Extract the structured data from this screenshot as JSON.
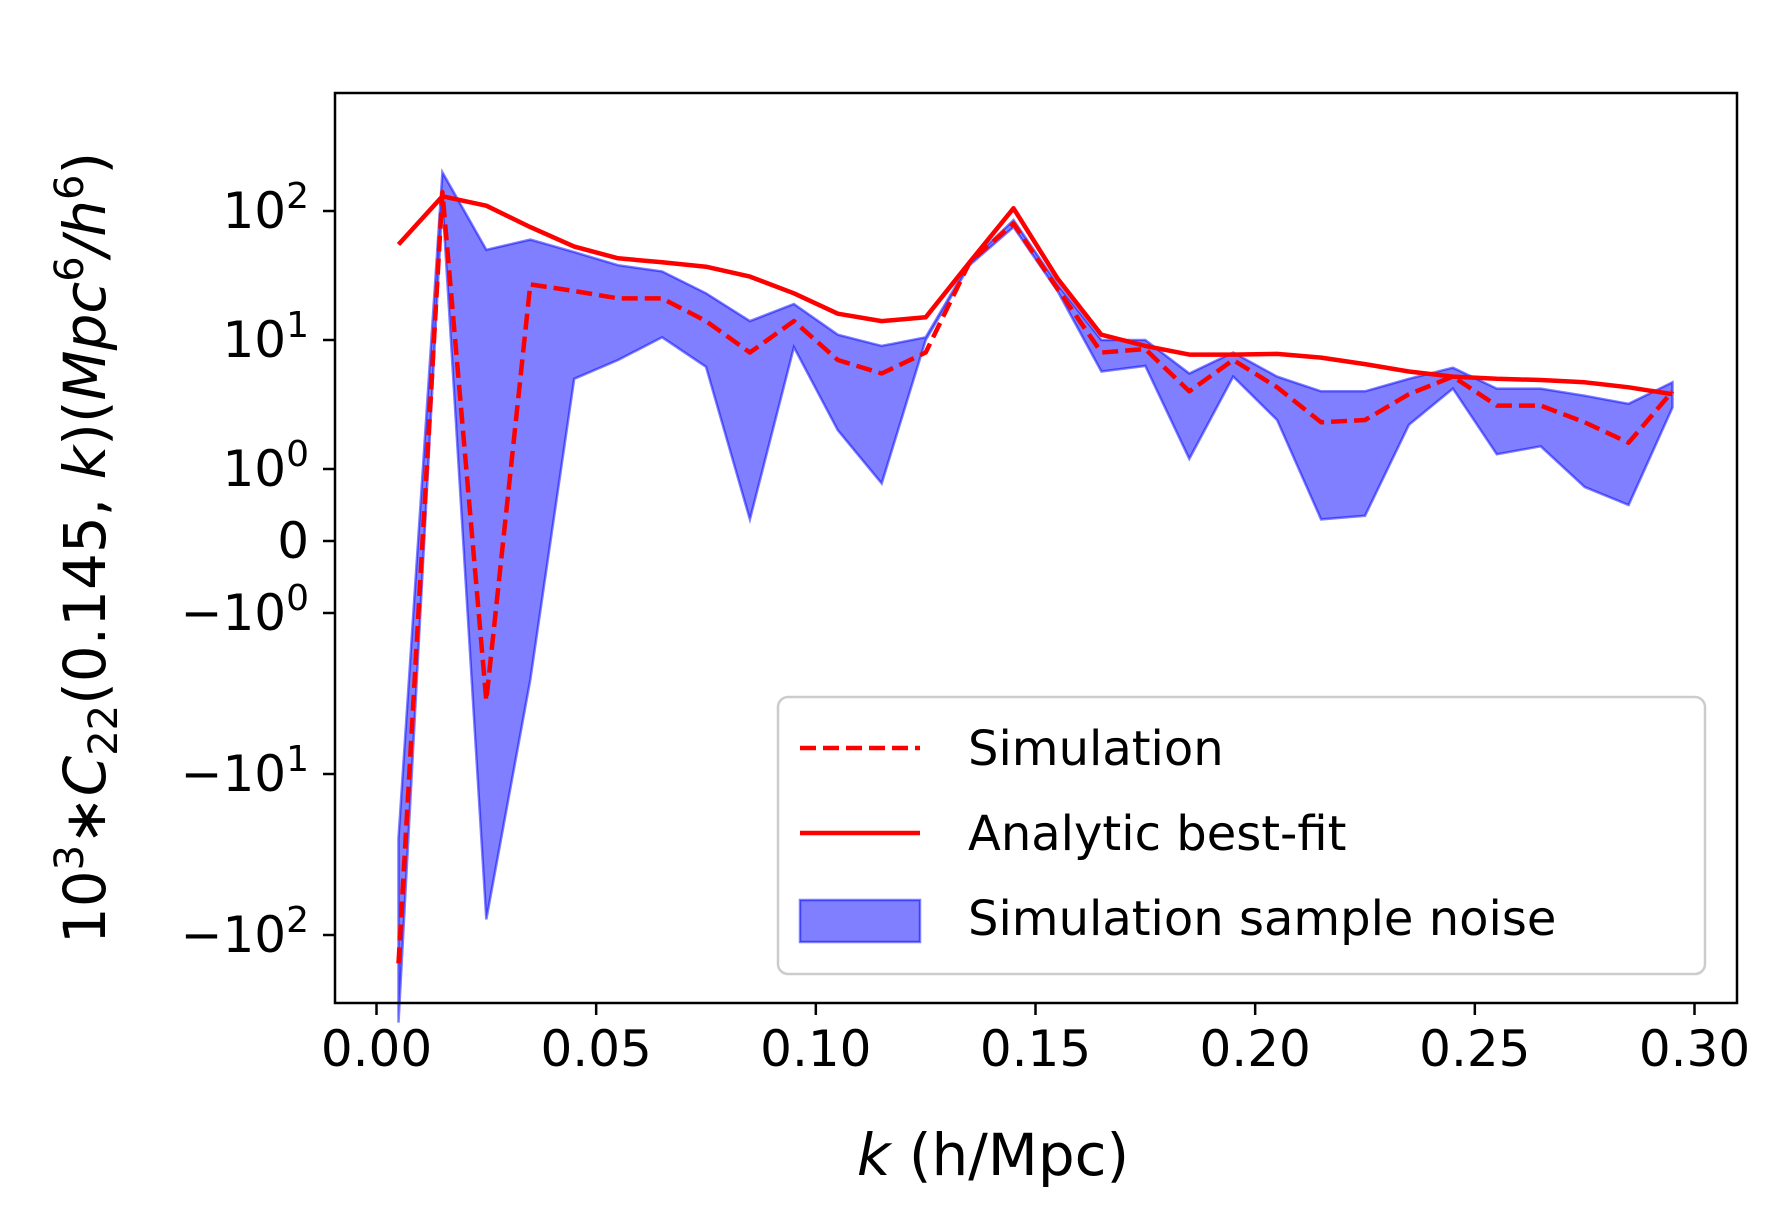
{
  "chart_data": {
    "type": "line",
    "title": "",
    "xlabel_italic": "k",
    "xlabel_rest": " (h/Mpc)",
    "ylabel": {
      "prefix": "10",
      "prefix_sup": "3",
      "star": "∗",
      "C": "C",
      "C_sub": "22",
      "args": "(0.145, ",
      "k": "k",
      "close": ")(",
      "M": "M",
      "pc": "pc",
      "pc_sup": "6",
      "slash": "/",
      "h": "h",
      "h_sup": "6",
      "end": ")"
    },
    "yscale": "symlog",
    "linthresh": 1,
    "xlim": [
      -0.0095,
      0.3095
    ],
    "ylim": [
      -480,
      480
    ],
    "x_ticks": [
      {
        "value": 0.0,
        "label": "0.00"
      },
      {
        "value": 0.05,
        "label": "0.05"
      },
      {
        "value": 0.1,
        "label": "0.10"
      },
      {
        "value": 0.15,
        "label": "0.15"
      },
      {
        "value": 0.2,
        "label": "0.20"
      },
      {
        "value": 0.25,
        "label": "0.25"
      },
      {
        "value": 0.3,
        "label": "0.30"
      }
    ],
    "y_ticks": [
      {
        "value": 100,
        "base": "10",
        "exp": "2",
        "sign": ""
      },
      {
        "value": 10,
        "base": "10",
        "exp": "1",
        "sign": ""
      },
      {
        "value": 1,
        "base": "10",
        "exp": "0",
        "sign": ""
      },
      {
        "value": 0,
        "base": "0",
        "exp": "",
        "sign": ""
      },
      {
        "value": -1,
        "base": "10",
        "exp": "0",
        "sign": "−"
      },
      {
        "value": -10,
        "base": "10",
        "exp": "1",
        "sign": "−"
      },
      {
        "value": -100,
        "base": "10",
        "exp": "2",
        "sign": "−"
      }
    ],
    "x": [
      0.005,
      0.015,
      0.025,
      0.035,
      0.045,
      0.055,
      0.065,
      0.075,
      0.085,
      0.095,
      0.105,
      0.115,
      0.125,
      0.135,
      0.145,
      0.155,
      0.165,
      0.175,
      0.185,
      0.195,
      0.205,
      0.215,
      0.225,
      0.235,
      0.245,
      0.255,
      0.265,
      0.275,
      0.285,
      0.295
    ],
    "series": [
      {
        "name": "Simulation",
        "style": "dashed",
        "color": "#ff0000",
        "values": [
          -150,
          140,
          -3.5,
          27,
          24,
          21,
          21,
          14,
          8,
          14,
          7,
          5.5,
          8,
          40,
          80,
          25,
          8,
          8.5,
          4,
          7,
          4.3,
          2.3,
          2.4,
          3.8,
          5.2,
          3.1,
          3.1,
          2.3,
          1.6,
          4
        ]
      },
      {
        "name": "Analytic best-fit",
        "style": "solid",
        "color": "#ff0000",
        "values": [
          55,
          130,
          110,
          75,
          53,
          43,
          40,
          37,
          31,
          23,
          16,
          14,
          15,
          40,
          105,
          30,
          11,
          9,
          7.7,
          7.7,
          7.8,
          7.3,
          6.5,
          5.7,
          5.2,
          5.0,
          4.9,
          4.7,
          4.3,
          3.8
        ]
      }
    ],
    "band": {
      "name": "Simulation sample noise",
      "color": "#0000ff",
      "opacity": 0.5,
      "upper": [
        -25,
        200,
        50,
        60,
        48,
        38,
        34,
        23,
        14,
        19,
        11,
        9,
        10.5,
        40,
        85,
        27,
        10,
        10,
        5.5,
        8,
        5.2,
        4,
        4,
        5.0,
        6.1,
        4.2,
        4.2,
        3.7,
        3.2,
        4.7
      ],
      "lower": [
        -350,
        120,
        -80,
        -2.6,
        5,
        7,
        10.5,
        6.2,
        0.3,
        8.8,
        2,
        0.8,
        10,
        38,
        75,
        24,
        5.7,
        6.3,
        1.2,
        5.2,
        2.4,
        0.3,
        0.35,
        2.2,
        4.2,
        1.3,
        1.5,
        0.75,
        0.5,
        3.0
      ]
    },
    "legend": {
      "position": "lower right",
      "entries": [
        "Simulation",
        "Analytic best-fit",
        "Simulation sample noise"
      ]
    }
  }
}
